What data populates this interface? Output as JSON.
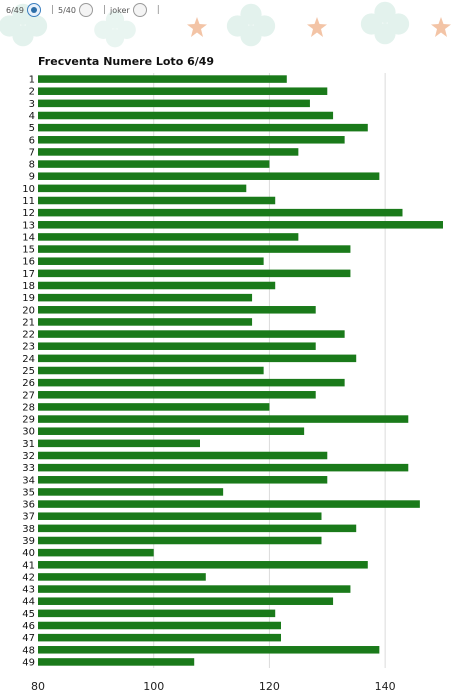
{
  "options": [
    {
      "label": "6/49",
      "checked": true
    },
    {
      "label": "5/40",
      "checked": false
    },
    {
      "label": "joker",
      "checked": false
    }
  ],
  "chart_data": {
    "type": "bar",
    "orientation": "horizontal",
    "title": "Frecventa Numere Loto 6/49",
    "categories": [
      "1",
      "2",
      "3",
      "4",
      "5",
      "6",
      "7",
      "8",
      "9",
      "10",
      "11",
      "12",
      "13",
      "14",
      "15",
      "16",
      "17",
      "18",
      "19",
      "20",
      "21",
      "22",
      "23",
      "24",
      "25",
      "26",
      "27",
      "28",
      "29",
      "30",
      "31",
      "32",
      "33",
      "34",
      "35",
      "36",
      "37",
      "38",
      "39",
      "40",
      "41",
      "42",
      "43",
      "44",
      "45",
      "46",
      "47",
      "48",
      "49"
    ],
    "values": [
      123,
      130,
      127,
      131,
      137,
      133,
      125,
      120,
      139,
      116,
      121,
      143,
      150,
      125,
      134,
      119,
      134,
      121,
      117,
      128,
      117,
      133,
      128,
      135,
      119,
      133,
      128,
      120,
      144,
      126,
      108,
      130,
      144,
      130,
      112,
      146,
      129,
      135,
      129,
      100,
      137,
      109,
      134,
      131,
      121,
      122,
      122,
      139,
      107
    ],
    "xlim": [
      80,
      150
    ],
    "xticks": [
      80,
      100,
      120,
      140
    ],
    "grid": true,
    "color": "#1a7a1a"
  }
}
